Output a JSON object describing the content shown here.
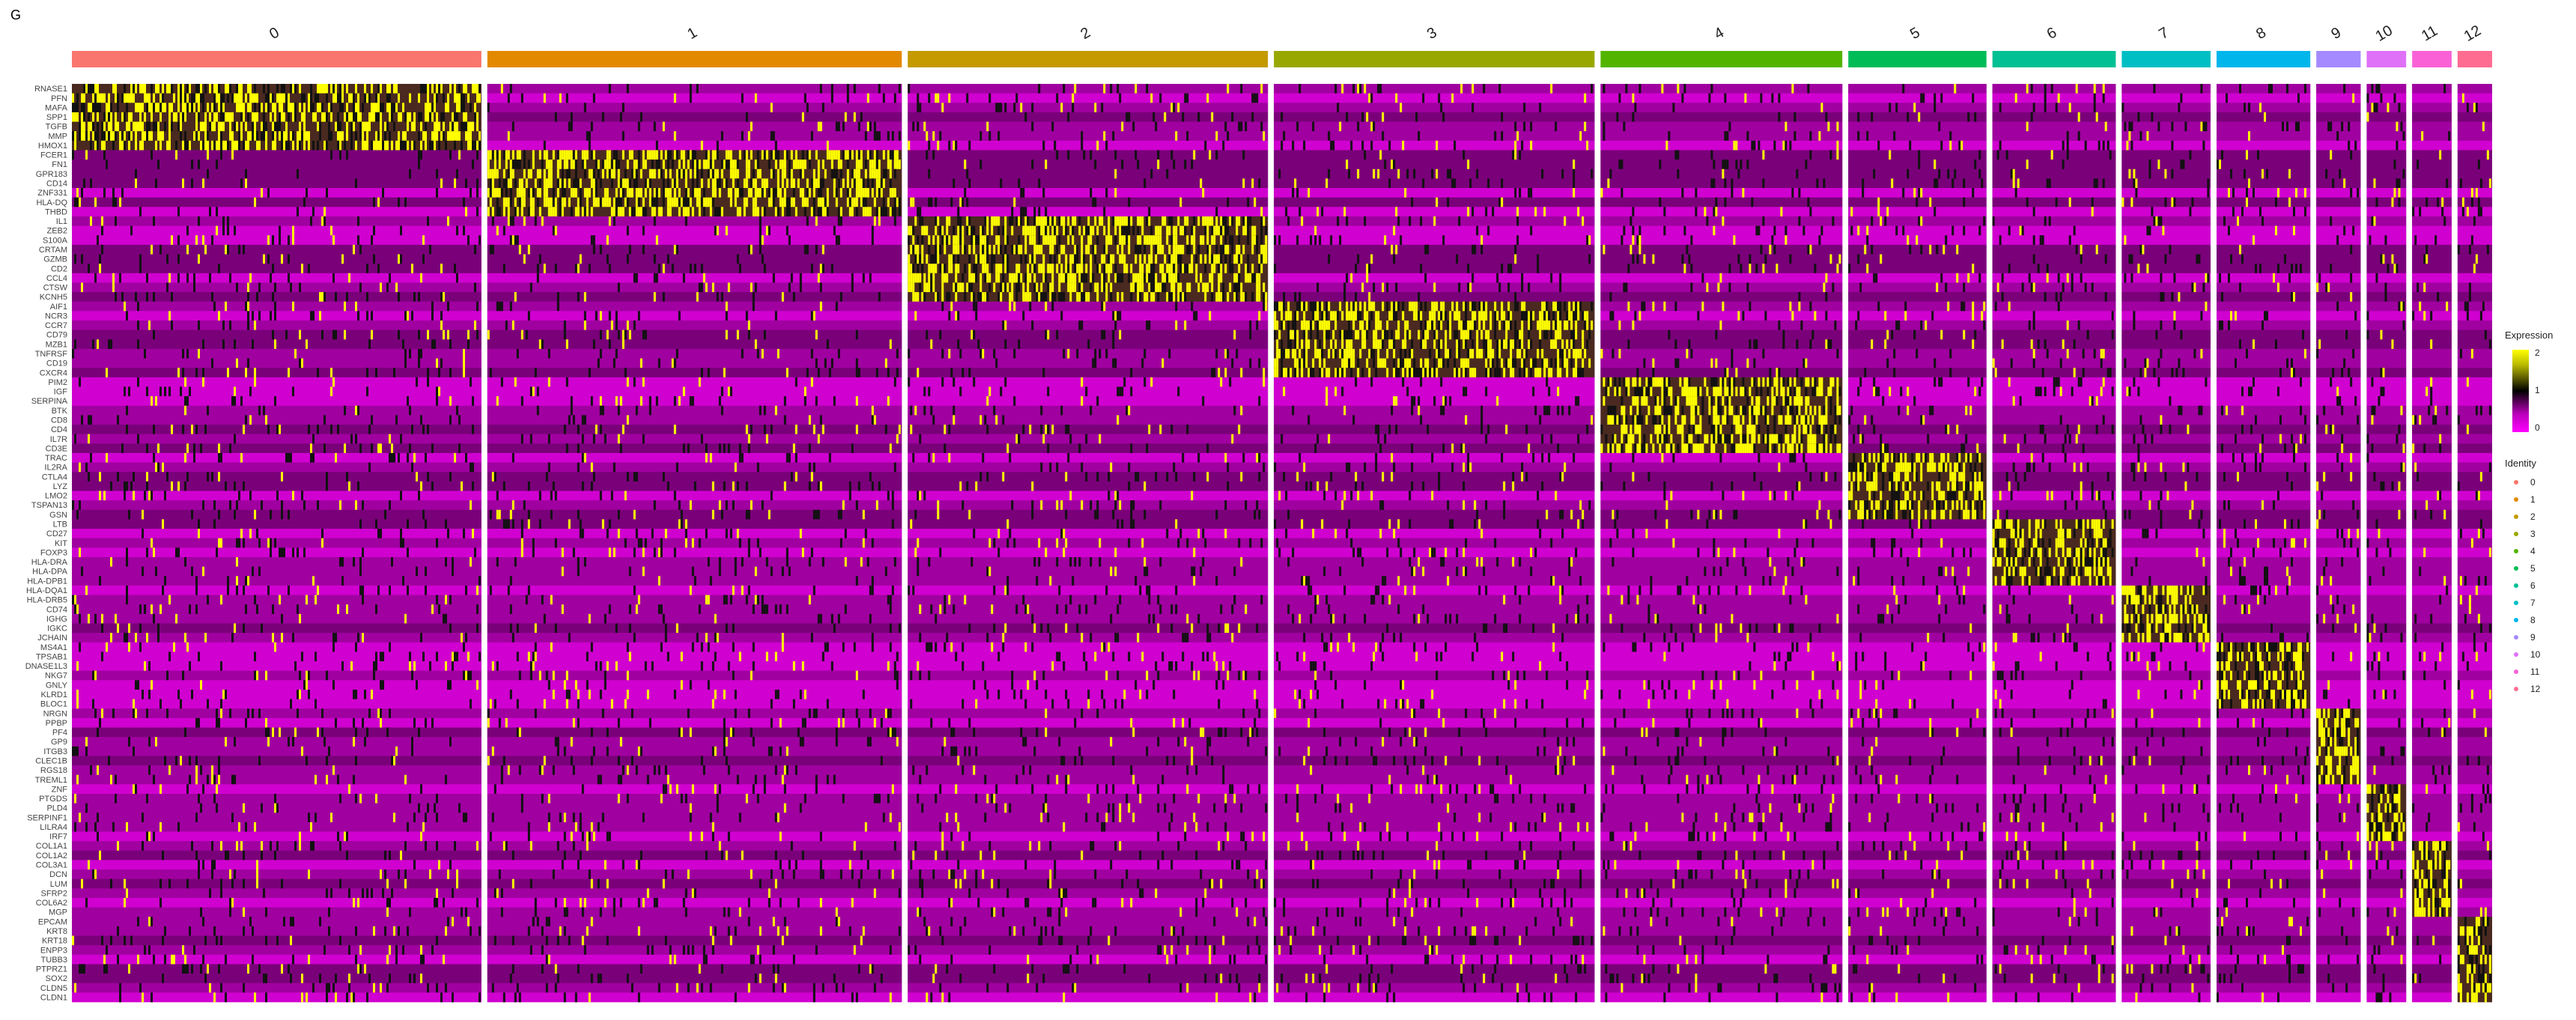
{
  "panel_label": "G",
  "chart_data": {
    "type": "heatmap",
    "clusters": [
      "0",
      "1",
      "2",
      "3",
      "4",
      "5",
      "6",
      "7",
      "8",
      "9",
      "10",
      "11",
      "12"
    ],
    "cluster_colors": [
      "#F8766D",
      "#E38900",
      "#C49A00",
      "#99A800",
      "#53B400",
      "#00BC56",
      "#00C094",
      "#00BFC4",
      "#00B6EB",
      "#A58AFF",
      "#DF70F8",
      "#FB61D7",
      "#FF6C91"
    ],
    "cluster_widths": [
      8.3,
      8.4,
      7.3,
      6.5,
      4.9,
      2.8,
      2.5,
      1.8,
      1.9,
      0.9,
      0.8,
      0.8,
      0.7
    ],
    "gene_labels": [
      "RNASE1",
      "PFN",
      "MAFA",
      "SPP1",
      "TGFB",
      "MMP",
      "HMOX1",
      "FCER1",
      "FN1",
      "GPR183",
      "CD14",
      "ZNF331",
      "HLA-DQ",
      "THBD",
      "IL1",
      "ZEB2",
      "S100A",
      "CRTAM",
      "GZMB",
      "CD2",
      "CCL4",
      "CTSW",
      "KCNH5",
      "AIF1",
      "NCR3",
      "CCR7",
      "CD79",
      "MZB1",
      "TNFRSF",
      "CD19",
      "CXCR4",
      "PIM2",
      "IGF",
      "SERPINA",
      "BTK",
      "CD8",
      "CD4",
      "IL7R",
      "CD3E",
      "TRAC",
      "IL2RA",
      "CTLA4",
      "LYZ",
      "LMO2",
      "TSPAN13",
      "GSN",
      "LTB",
      "CD27",
      "KIT",
      "FOXP3",
      "HLA-DRA",
      "HLA-DPA",
      "HLA-DPB1",
      "HLA-DQA1",
      "HLA-DRB5",
      "CD74",
      "IGHG",
      "IGKC",
      "JCHAIN",
      "MS4A1",
      "TPSAB1",
      "DNASE1L3",
      "NKG7",
      "GNLY",
      "KLRD1",
      "BLOC1",
      "NRGN",
      "PPBP",
      "PF4",
      "GP9",
      "ITGB3",
      "CLEC1B",
      "RGS18",
      "TREML1",
      "ZNF",
      "PTGDS",
      "PLD4",
      "SERPINF1",
      "LILRA4",
      "IRF7",
      "COL1A1",
      "COL1A2",
      "COL3A1",
      "DCN",
      "LUM",
      "SFRP2",
      "COL6A2",
      "MGP",
      "EPCAM",
      "KRT8",
      "KRT18",
      "ENPP3",
      "TUBB3",
      "PTPRZ1",
      "SOX2",
      "CLDN5",
      "CLDN1"
    ],
    "gene_group_cluster": [
      0,
      0,
      0,
      0,
      0,
      0,
      0,
      1,
      1,
      1,
      1,
      1,
      1,
      1,
      2,
      2,
      2,
      2,
      2,
      2,
      2,
      2,
      2,
      3,
      3,
      3,
      3,
      3,
      3,
      3,
      3,
      4,
      4,
      4,
      4,
      4,
      4,
      4,
      4,
      5,
      5,
      5,
      5,
      5,
      5,
      5,
      6,
      6,
      6,
      6,
      6,
      6,
      6,
      7,
      7,
      7,
      7,
      7,
      7,
      8,
      8,
      8,
      8,
      8,
      8,
      8,
      9,
      9,
      9,
      9,
      9,
      9,
      9,
      9,
      10,
      10,
      10,
      10,
      10,
      10,
      11,
      11,
      11,
      11,
      11,
      11,
      11,
      11,
      12,
      12,
      12,
      12,
      12,
      12,
      12,
      12,
      12
    ],
    "color_scale": {
      "title": "Expression",
      "ticks": [
        2,
        1,
        0
      ],
      "colors": [
        "#ff00ff",
        "#000000",
        "#ffff00"
      ]
    },
    "legend": {
      "title": "Identity",
      "position": "right"
    }
  }
}
